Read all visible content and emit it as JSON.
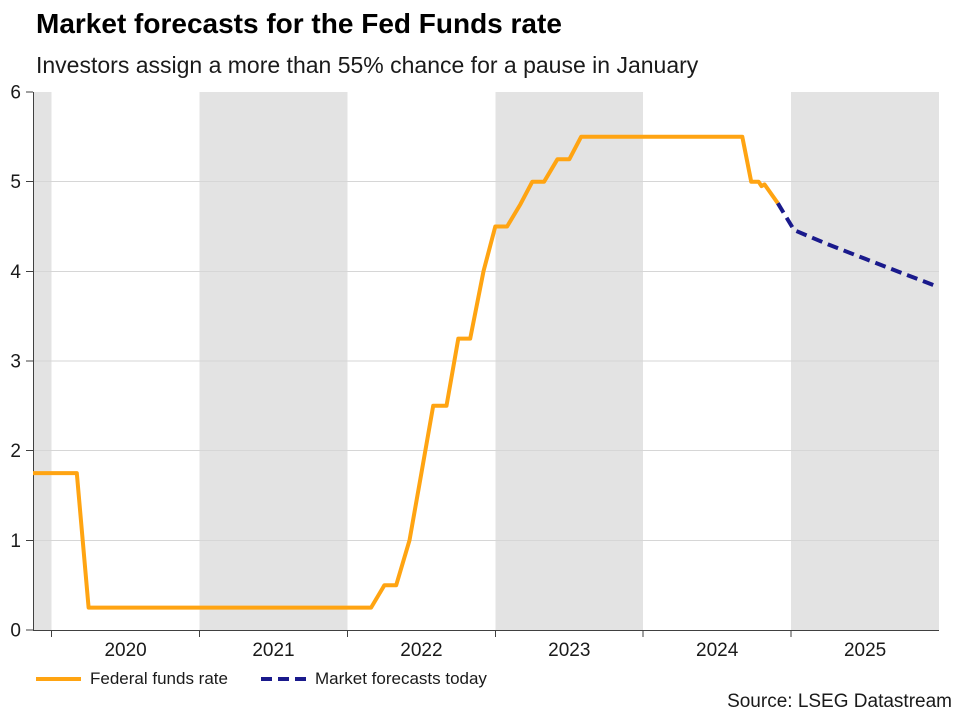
{
  "header": {
    "title": "Market forecasts for the Fed Funds rate",
    "subtitle": "Investors assign a more than 55% chance for a pause in January"
  },
  "source": "Source: LSEG Datastream",
  "legend": {
    "items": [
      {
        "label": "Federal funds rate",
        "color": "#FFA412",
        "style": "solid"
      },
      {
        "label": "Market forecasts today",
        "color": "#1A1A8C",
        "style": "dashed"
      }
    ],
    "position": "bottom-left"
  },
  "colors": {
    "accent_orange": "#FFA412",
    "accent_navy": "#1A1A8C",
    "band_gray": "#E3E3E3",
    "grid_gray": "#D6D6D6",
    "axis_color": "#404040",
    "text_color": "#1a1a1a"
  },
  "chart_data": {
    "type": "line",
    "title": "Market forecasts for the Fed Funds rate",
    "subtitle": "Investors assign a more than 55% chance for a pause in January",
    "xlabel": "",
    "ylabel": "",
    "xlim": [
      2019.874,
      2026.0
    ],
    "ylim": [
      0,
      6
    ],
    "y_ticks": [
      0,
      1,
      2,
      3,
      4,
      5,
      6
    ],
    "y_tick_labels": [
      "0",
      "1",
      "2",
      "3",
      "4",
      "5",
      "6"
    ],
    "x_tick_years": [
      2020,
      2021,
      2022,
      2023,
      2024,
      2025
    ],
    "x_tick_labels": [
      "2020",
      "2021",
      "2022",
      "2023",
      "2024",
      "2025"
    ],
    "gridline_values": [
      1,
      2,
      3,
      4,
      5
    ],
    "grid": true,
    "shaded_year_spans": [
      [
        2019.874,
        2020
      ],
      [
        2021,
        2022
      ],
      [
        2023,
        2024
      ],
      [
        2025,
        2026
      ]
    ],
    "legend_position": "bottom-left",
    "series": [
      {
        "name": "Federal funds rate",
        "color": "#FFA412",
        "style": "solid",
        "points": [
          [
            2019.874,
            1.75
          ],
          [
            2020.17,
            1.75
          ],
          [
            2020.25,
            0.25
          ],
          [
            2022.16,
            0.25
          ],
          [
            2022.25,
            0.5
          ],
          [
            2022.33,
            0.5
          ],
          [
            2022.42,
            1.0
          ],
          [
            2022.5,
            1.75
          ],
          [
            2022.58,
            2.5
          ],
          [
            2022.67,
            2.5
          ],
          [
            2022.75,
            3.25
          ],
          [
            2022.83,
            3.25
          ],
          [
            2022.92,
            4.0
          ],
          [
            2023.0,
            4.5
          ],
          [
            2023.08,
            4.5
          ],
          [
            2023.17,
            4.75
          ],
          [
            2023.25,
            5.0
          ],
          [
            2023.33,
            5.0
          ],
          [
            2023.42,
            5.25
          ],
          [
            2023.5,
            5.25
          ],
          [
            2023.58,
            5.5
          ],
          [
            2024.67,
            5.5
          ],
          [
            2024.73,
            5.0
          ],
          [
            2024.78,
            5.0
          ],
          [
            2024.8,
            4.95
          ],
          [
            2024.82,
            4.97
          ],
          [
            2024.91,
            4.76
          ]
        ]
      },
      {
        "name": "Market forecasts today",
        "color": "#1A1A8C",
        "style": "dashed",
        "points": [
          [
            2024.91,
            4.76
          ],
          [
            2025.02,
            4.46
          ],
          [
            2025.25,
            4.3
          ],
          [
            2025.5,
            4.14
          ],
          [
            2025.75,
            3.98
          ],
          [
            2025.99,
            3.83
          ]
        ]
      }
    ]
  }
}
